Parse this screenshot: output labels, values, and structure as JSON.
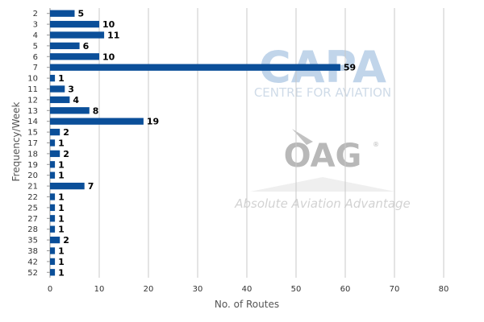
{
  "chart_data": {
    "type": "bar",
    "orientation": "horizontal",
    "xlabel": "No. of Routes",
    "ylabel": "Frequency/Week",
    "xlim": [
      0,
      80
    ],
    "xticks": [
      0,
      10,
      20,
      30,
      40,
      50,
      60,
      70,
      80
    ],
    "grid": true,
    "bar_color": "#0b4f99",
    "categories": [
      "2",
      "3",
      "4",
      "5",
      "6",
      "7",
      "10",
      "11",
      "12",
      "13",
      "14",
      "15",
      "17",
      "18",
      "19",
      "20",
      "21",
      "22",
      "25",
      "27",
      "28",
      "35",
      "38",
      "42",
      "52"
    ],
    "values": [
      5,
      10,
      11,
      6,
      10,
      59,
      1,
      3,
      4,
      8,
      19,
      2,
      1,
      2,
      1,
      1,
      7,
      1,
      1,
      1,
      1,
      2,
      1,
      1,
      1
    ]
  },
  "watermarks": {
    "capa_logo": "CAPA",
    "capa_sub": "CENTRE FOR AVIATION",
    "oag_logo": "OAG",
    "oag_tagline": "Absolute Aviation Advantage"
  }
}
